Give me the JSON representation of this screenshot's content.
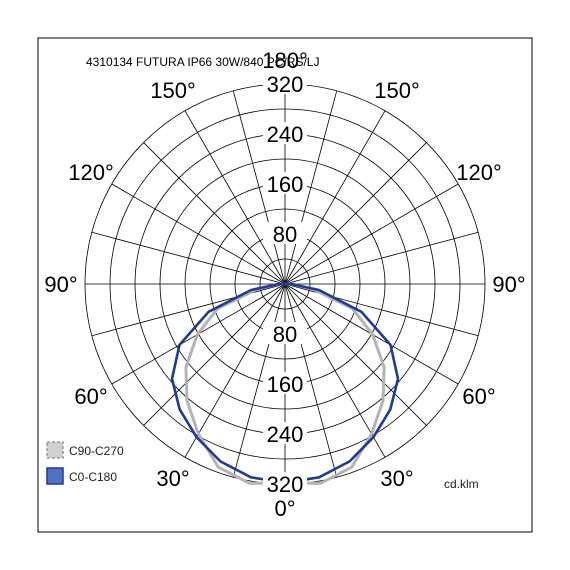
{
  "chart_data": {
    "type": "polar",
    "title": "4310134 FUTURA IP66 30W/840 PC/RS/LJ",
    "unit": "cd.klm",
    "angle_labels": [
      {
        "text": "180°",
        "angle": 180
      },
      {
        "text": "150°",
        "angle": 150
      },
      {
        "text": "150°",
        "angle": -150
      },
      {
        "text": "120°",
        "angle": 120
      },
      {
        "text": "120°",
        "angle": -120
      },
      {
        "text": "90°",
        "angle": 90
      },
      {
        "text": "90°",
        "angle": -90
      },
      {
        "text": "60°",
        "angle": 60
      },
      {
        "text": "60°",
        "angle": -60
      },
      {
        "text": "30°",
        "angle": 30
      },
      {
        "text": "30°",
        "angle": -30
      },
      {
        "text": "0°",
        "angle": 0
      }
    ],
    "radial_ticks_upper": [
      80,
      160,
      240,
      320
    ],
    "radial_ticks_lower": [
      80,
      160,
      240,
      320
    ],
    "rmax": 320,
    "ring_step": 40,
    "spoke_step_deg": 15,
    "series": [
      {
        "name": "C90-C270",
        "color": "#b4b4b4",
        "dashed": false,
        "angles": [
          0,
          10,
          20,
          30,
          40,
          50,
          60,
          70,
          80,
          90
        ],
        "values": [
          318,
          324,
          312,
          277,
          244,
          207,
          162,
          115,
          44,
          10
        ]
      },
      {
        "name": "C0-C180",
        "color": "#1f3a9c",
        "dashed": false,
        "angles": [
          0,
          10,
          20,
          30,
          40,
          50,
          60,
          70,
          80,
          90
        ],
        "values": [
          318,
          314,
          302,
          283,
          262,
          236,
          195,
          130,
          55,
          10
        ]
      }
    ],
    "legend": [
      {
        "label": "C90-C270",
        "fill": "#d0d0d0",
        "border": "#9a9a9a",
        "style": "dashed"
      },
      {
        "label": "C0-C180",
        "fill": "#4f72c8",
        "border": "#1f3a9c",
        "style": "solid"
      }
    ]
  }
}
